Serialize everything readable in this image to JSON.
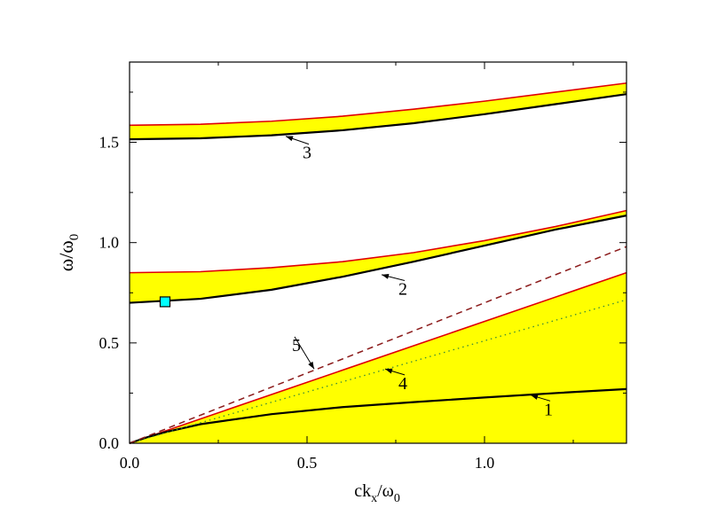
{
  "chart_data": {
    "type": "line",
    "xlabel": {
      "main": "ck",
      "sub": "x",
      "tail": "/ω",
      "sub2": "0"
    },
    "ylabel": {
      "main": "ω/ω",
      "sub": "0"
    },
    "xlim": [
      0,
      1.4
    ],
    "ylim": [
      0,
      1.9
    ],
    "x_ticks": [
      0.0,
      0.5,
      1.0
    ],
    "x_tick_labels": [
      "0.0",
      "0.5",
      "1.0"
    ],
    "y_ticks": [
      0.0,
      0.5,
      1.0,
      1.5
    ],
    "y_tick_labels": [
      "0.0",
      "0.5",
      "1.0",
      "1.5"
    ],
    "grid": false,
    "colors": {
      "fill": "#ffff00",
      "upper_edge": "#e00000",
      "lower_edge": "#000000",
      "line5": "#8b1a1a",
      "line4": "#3a8a3a",
      "marker": "#00ffff"
    },
    "bands": [
      {
        "name": "",
        "x": [
          0,
          0.2,
          0.4,
          0.6,
          0.8,
          1.0,
          1.2,
          1.4
        ],
        "upper": [
          1.585,
          1.59,
          1.605,
          1.63,
          1.665,
          1.705,
          1.75,
          1.795
        ],
        "lower": [
          1.515,
          1.52,
          1.535,
          1.56,
          1.595,
          1.64,
          1.69,
          1.74
        ]
      },
      {
        "name": "",
        "x": [
          0,
          0.2,
          0.4,
          0.6,
          0.8,
          1.0,
          1.2,
          1.4
        ],
        "upper": [
          0.85,
          0.855,
          0.875,
          0.905,
          0.95,
          1.01,
          1.08,
          1.16
        ],
        "lower": [
          0.7,
          0.72,
          0.765,
          0.83,
          0.905,
          0.985,
          1.065,
          1.135
        ]
      },
      {
        "name": "",
        "x": [
          0,
          1.4
        ],
        "upper": [
          0,
          0.85
        ],
        "lower": [
          0,
          0
        ]
      }
    ],
    "series": [
      {
        "name": "",
        "style": "solid",
        "x": [
          0,
          0.05,
          0.1,
          0.2,
          0.4,
          0.6,
          0.8,
          1.0,
          1.2,
          1.4
        ],
        "y": [
          0,
          0.03,
          0.055,
          0.095,
          0.145,
          0.18,
          0.205,
          0.228,
          0.25,
          0.27
        ]
      },
      {
        "name": "",
        "style": "dotted",
        "x": [
          0,
          1.4
        ],
        "y": [
          0,
          0.715
        ]
      },
      {
        "name": "",
        "style": "dashed",
        "x": [
          0,
          1.4
        ],
        "y": [
          0,
          0.98
        ]
      }
    ],
    "marker": {
      "x": 0.1,
      "y": 0.705
    },
    "annotations": [
      {
        "label": "1",
        "text_x": 1.18,
        "text_y": 0.14,
        "arrow_x": 1.13,
        "arrow_y": 0.24
      },
      {
        "label": "2",
        "text_x": 0.77,
        "text_y": 0.74,
        "arrow_x": 0.71,
        "arrow_y": 0.84
      },
      {
        "label": "3",
        "text_x": 0.5,
        "text_y": 1.42,
        "arrow_x": 0.44,
        "arrow_y": 1.53
      },
      {
        "label": "4",
        "text_x": 0.77,
        "text_y": 0.27,
        "arrow_x": 0.72,
        "arrow_y": 0.37
      },
      {
        "label": "5",
        "text_x": 0.47,
        "text_y": 0.46,
        "arrow_x": 0.52,
        "arrow_y": 0.37
      }
    ]
  }
}
